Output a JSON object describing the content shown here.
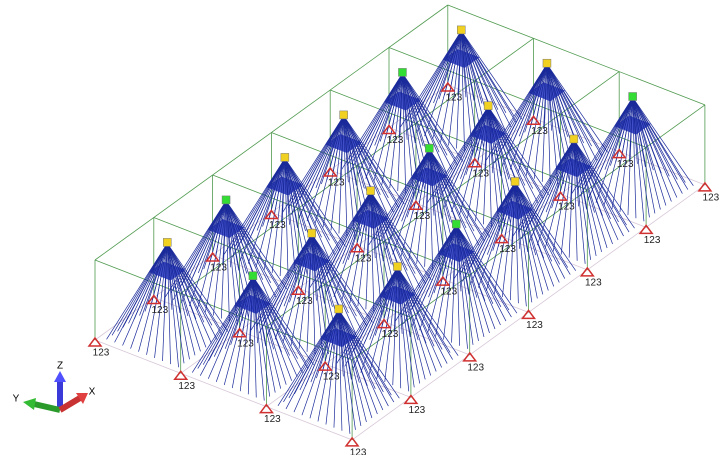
{
  "triad": {
    "x": "X",
    "y": "Y",
    "z": "Z"
  },
  "support_labels": [
    "123",
    "123",
    "123",
    "123",
    "123",
    "123",
    "123",
    "123",
    "123",
    "123",
    "123",
    "123",
    "123",
    "123",
    "123",
    "123",
    "123",
    "123",
    "123",
    "123",
    "123",
    "123",
    "123",
    "123",
    "123",
    "123",
    "123",
    "123"
  ]
}
